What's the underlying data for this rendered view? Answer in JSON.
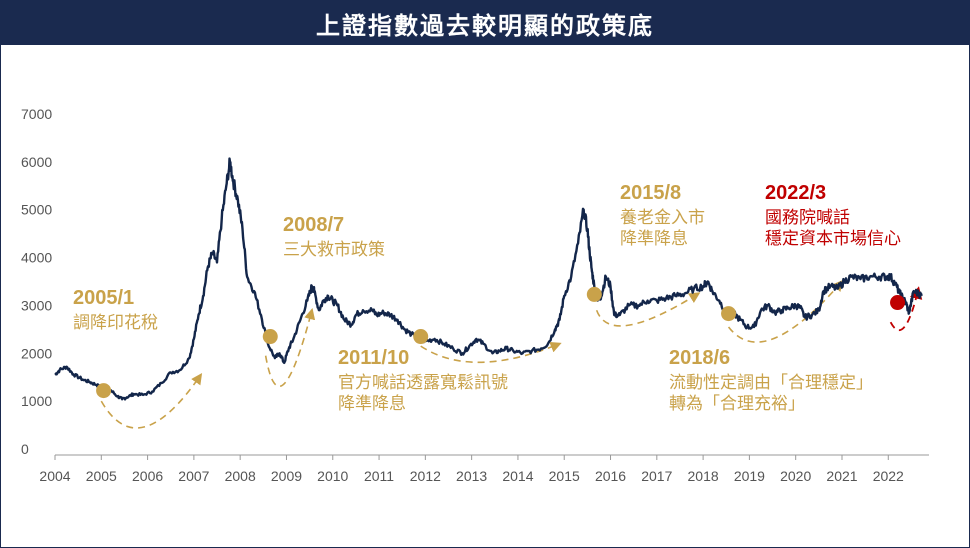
{
  "title": "上證指數過去較明顯的政策底",
  "colors": {
    "line": "#13264a",
    "gold": "#c9a24a",
    "red": "#c00000",
    "header": "#1a2a4f"
  },
  "chart_data": {
    "type": "line",
    "title": "上證指數過去較明顯的政策底",
    "xlabel": "",
    "ylabel": "",
    "ylim": [
      0,
      7000
    ],
    "xlim": [
      2004.0,
      2022.75
    ],
    "yticks": [
      0,
      1000,
      2000,
      3000,
      4000,
      5000,
      6000,
      7000
    ],
    "xticks": [
      "2004",
      "2005",
      "2006",
      "2007",
      "2008",
      "2009",
      "2010",
      "2011",
      "2012",
      "2013",
      "2014",
      "2015",
      "2016",
      "2017",
      "2018",
      "2019",
      "2020",
      "2021",
      "2022"
    ],
    "series": [
      {
        "name": "",
        "x": [
          2004.0,
          2004.1,
          2004.25,
          2004.4,
          2004.6,
          2004.75,
          2004.9,
          2005.0,
          2005.1,
          2005.2,
          2005.35,
          2005.45,
          2005.55,
          2005.7,
          2005.9,
          2006.1,
          2006.3,
          2006.5,
          2006.7,
          2006.9,
          2007.0,
          2007.1,
          2007.2,
          2007.3,
          2007.4,
          2007.5,
          2007.6,
          2007.7,
          2007.78,
          2007.85,
          2007.95,
          2008.05,
          2008.15,
          2008.3,
          2008.45,
          2008.6,
          2008.75,
          2008.85,
          2008.95,
          2009.05,
          2009.15,
          2009.3,
          2009.45,
          2009.55,
          2009.6,
          2009.7,
          2009.8,
          2009.9,
          2010.0,
          2010.1,
          2010.25,
          2010.4,
          2010.5,
          2010.65,
          2010.85,
          2010.95,
          2011.1,
          2011.25,
          2011.4,
          2011.55,
          2011.7,
          2011.85,
          2012.0,
          2012.2,
          2012.4,
          2012.6,
          2012.8,
          2012.95,
          2013.1,
          2013.25,
          2013.45,
          2013.6,
          2013.75,
          2013.9,
          2014.1,
          2014.3,
          2014.5,
          2014.65,
          2014.8,
          2014.9,
          2015.0,
          2015.15,
          2015.3,
          2015.42,
          2015.5,
          2015.55,
          2015.6,
          2015.65,
          2015.72,
          2015.8,
          2015.9,
          2016.0,
          2016.08,
          2016.2,
          2016.4,
          2016.6,
          2016.8,
          2017.0,
          2017.2,
          2017.4,
          2017.6,
          2017.8,
          2018.0,
          2018.1,
          2018.2,
          2018.35,
          2018.5,
          2018.65,
          2018.8,
          2018.95,
          2019.1,
          2019.25,
          2019.4,
          2019.55,
          2019.7,
          2019.85,
          2020.0,
          2020.1,
          2020.2,
          2020.35,
          2020.5,
          2020.6,
          2020.75,
          2020.9,
          2021.05,
          2021.2,
          2021.4,
          2021.6,
          2021.8,
          2021.95,
          2022.05,
          2022.15,
          2022.25,
          2022.32,
          2022.38,
          2022.45,
          2022.55,
          2022.65,
          2022.72
        ],
        "values": [
          1550,
          1650,
          1720,
          1560,
          1450,
          1400,
          1340,
          1280,
          1260,
          1230,
          1100,
          1040,
          1080,
          1150,
          1130,
          1200,
          1380,
          1600,
          1650,
          1900,
          2300,
          2800,
          3200,
          3800,
          4100,
          3900,
          4800,
          5500,
          6000,
          5600,
          5200,
          4600,
          3600,
          3300,
          2800,
          2200,
          1900,
          2000,
          1800,
          2100,
          2300,
          2700,
          3100,
          3400,
          3300,
          2900,
          3100,
          3200,
          3100,
          3000,
          2700,
          2600,
          2800,
          2900,
          2900,
          2800,
          2850,
          2800,
          2700,
          2500,
          2400,
          2300,
          2250,
          2300,
          2200,
          2100,
          2000,
          2150,
          2300,
          2200,
          2000,
          2050,
          2100,
          2050,
          2000,
          2050,
          2100,
          2200,
          2500,
          2700,
          3200,
          3600,
          4300,
          5000,
          4600,
          4100,
          3700,
          3400,
          3100,
          3200,
          3600,
          3400,
          2800,
          2800,
          3000,
          3000,
          3100,
          3100,
          3150,
          3200,
          3250,
          3350,
          3400,
          3500,
          3300,
          3100,
          2850,
          2850,
          2700,
          2550,
          2550,
          2900,
          3000,
          2850,
          2900,
          2950,
          3000,
          2950,
          2750,
          2800,
          2900,
          3300,
          3400,
          3350,
          3500,
          3600,
          3550,
          3600,
          3600,
          3600,
          3600,
          3450,
          3250,
          3150,
          3050,
          2850,
          3300,
          3250,
          3200
        ]
      }
    ],
    "annotations": [
      {
        "date": "2005/1",
        "lines": [
          "調降印花稅"
        ],
        "color": "gold",
        "point": [
          2005.05,
          1220
        ]
      },
      {
        "date": "2008/7",
        "lines": [
          "三大救市政策"
        ],
        "color": "gold",
        "point": [
          2008.65,
          2350
        ]
      },
      {
        "date": "2011/10",
        "lines": [
          "官方喊話透露寬鬆訊號",
          "降準降息"
        ],
        "color": "gold",
        "point": [
          2011.9,
          2350
        ]
      },
      {
        "date": "2015/8",
        "lines": [
          "養老金入市",
          "降準降息"
        ],
        "color": "gold",
        "point": [
          2015.65,
          3230
        ]
      },
      {
        "date": "2018/6",
        "lines": [
          "流動性定調由「合理穩定」",
          "轉為「合理充裕」"
        ],
        "color": "gold",
        "point": [
          2018.55,
          2830
        ]
      },
      {
        "date": "2022/3",
        "lines": [
          "國務院喊話",
          "穩定資本市場信心"
        ],
        "color": "red",
        "point": [
          2022.2,
          3060
        ]
      }
    ]
  }
}
